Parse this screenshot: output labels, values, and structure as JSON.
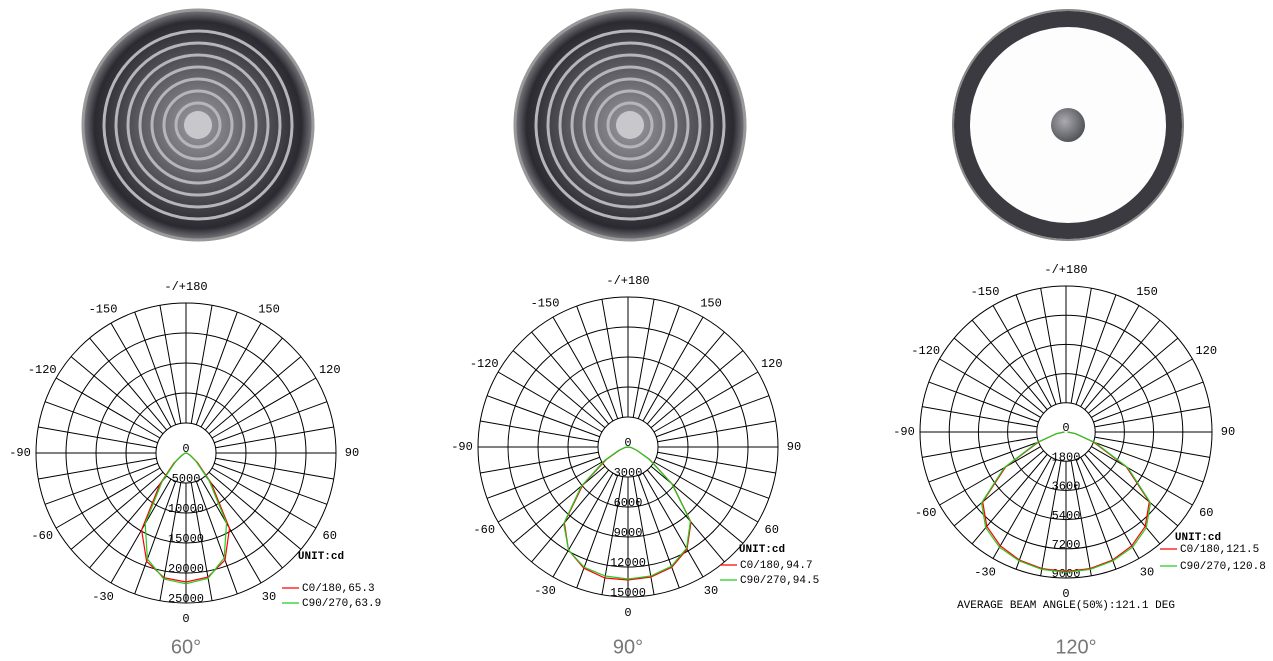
{
  "chart_data": [
    {
      "type": "polar",
      "caption": "60°",
      "unit": "UNIT:cd",
      "xlim": [
        -180,
        180
      ],
      "xticks": [
        {
          "value": 180,
          "label": "-/+180"
        },
        150,
        120,
        90,
        60,
        30,
        0,
        -30,
        -60,
        -90,
        -120,
        -150
      ],
      "ylim": [
        0,
        25000
      ],
      "yticks": [
        0,
        5000,
        10000,
        15000,
        20000,
        25000
      ],
      "x": [
        -90,
        -80,
        -70,
        -60,
        -50,
        -40,
        -30,
        -20,
        -10,
        0,
        10,
        20,
        30,
        40,
        50,
        60,
        70,
        80,
        90
      ],
      "series": [
        {
          "name": "C0/180,65.3",
          "color": "#ff0000",
          "values": [
            0,
            100,
            300,
            900,
            2600,
            6800,
            14800,
            19200,
            21100,
            21500,
            21000,
            19000,
            14500,
            6500,
            2500,
            900,
            300,
            100,
            0
          ]
        },
        {
          "name": "C90/270,63.9",
          "color": "#22cc22",
          "values": [
            0,
            100,
            300,
            800,
            2300,
            6200,
            13600,
            18800,
            21300,
            21800,
            21200,
            18600,
            13500,
            6000,
            2200,
            800,
            300,
            100,
            0
          ]
        }
      ]
    },
    {
      "type": "polar",
      "caption": "90°",
      "unit": "UNIT:cd",
      "xlim": [
        -180,
        180
      ],
      "xticks": [
        {
          "value": 180,
          "label": "-/+180"
        },
        150,
        120,
        90,
        60,
        30,
        0,
        -30,
        -60,
        -90,
        -120,
        -150
      ],
      "ylim": [
        0,
        15000
      ],
      "yticks": [
        0,
        3000,
        6000,
        9000,
        12000,
        15000
      ],
      "x": [
        -90,
        -80,
        -70,
        -60,
        -50,
        -40,
        -30,
        -20,
        -10,
        0,
        10,
        20,
        30,
        40,
        50,
        60,
        70,
        80,
        90
      ],
      "series": [
        {
          "name": "C0/180,94.7",
          "color": "#ff0000",
          "values": [
            0,
            300,
            900,
            2500,
            5900,
            9900,
            11900,
            12900,
            13300,
            13300,
            13200,
            12800,
            11800,
            9800,
            5800,
            2500,
            900,
            300,
            0
          ]
        },
        {
          "name": "C90/270,94.5",
          "color": "#22cc22",
          "values": [
            0,
            300,
            1000,
            2700,
            6100,
            10000,
            11900,
            12800,
            13100,
            13200,
            13100,
            12700,
            11700,
            9700,
            5700,
            2400,
            900,
            300,
            0
          ]
        }
      ]
    },
    {
      "type": "polar",
      "caption": "120°",
      "unit": "UNIT:cd",
      "note": "AVERAGE BEAM ANGLE(50%):121.1 DEG",
      "xlim": [
        -180,
        180
      ],
      "xticks": [
        {
          "value": 180,
          "label": "-/+180"
        },
        150,
        120,
        90,
        60,
        30,
        0,
        -30,
        -60,
        -90,
        -120,
        -150
      ],
      "ylim": [
        0,
        9000
      ],
      "yticks": [
        0,
        1800,
        3600,
        5400,
        7200,
        9000
      ],
      "x": [
        -90,
        -80,
        -70,
        -60,
        -50,
        -40,
        -30,
        -20,
        -10,
        0,
        10,
        20,
        30,
        40,
        50,
        60,
        70,
        80,
        90
      ],
      "series": [
        {
          "name": "C0/180,121.5",
          "color": "#ff0000",
          "values": [
            100,
            600,
            1800,
            4300,
            6700,
            7600,
            8100,
            8400,
            8550,
            8600,
            8550,
            8400,
            8100,
            7600,
            6700,
            4300,
            1800,
            600,
            100
          ]
        },
        {
          "name": "C90/270,120.8",
          "color": "#22cc22",
          "values": [
            100,
            600,
            1900,
            4400,
            6800,
            7700,
            8200,
            8450,
            8600,
            8650,
            8600,
            8450,
            8200,
            7700,
            6800,
            4400,
            1900,
            600,
            100
          ]
        }
      ]
    }
  ]
}
